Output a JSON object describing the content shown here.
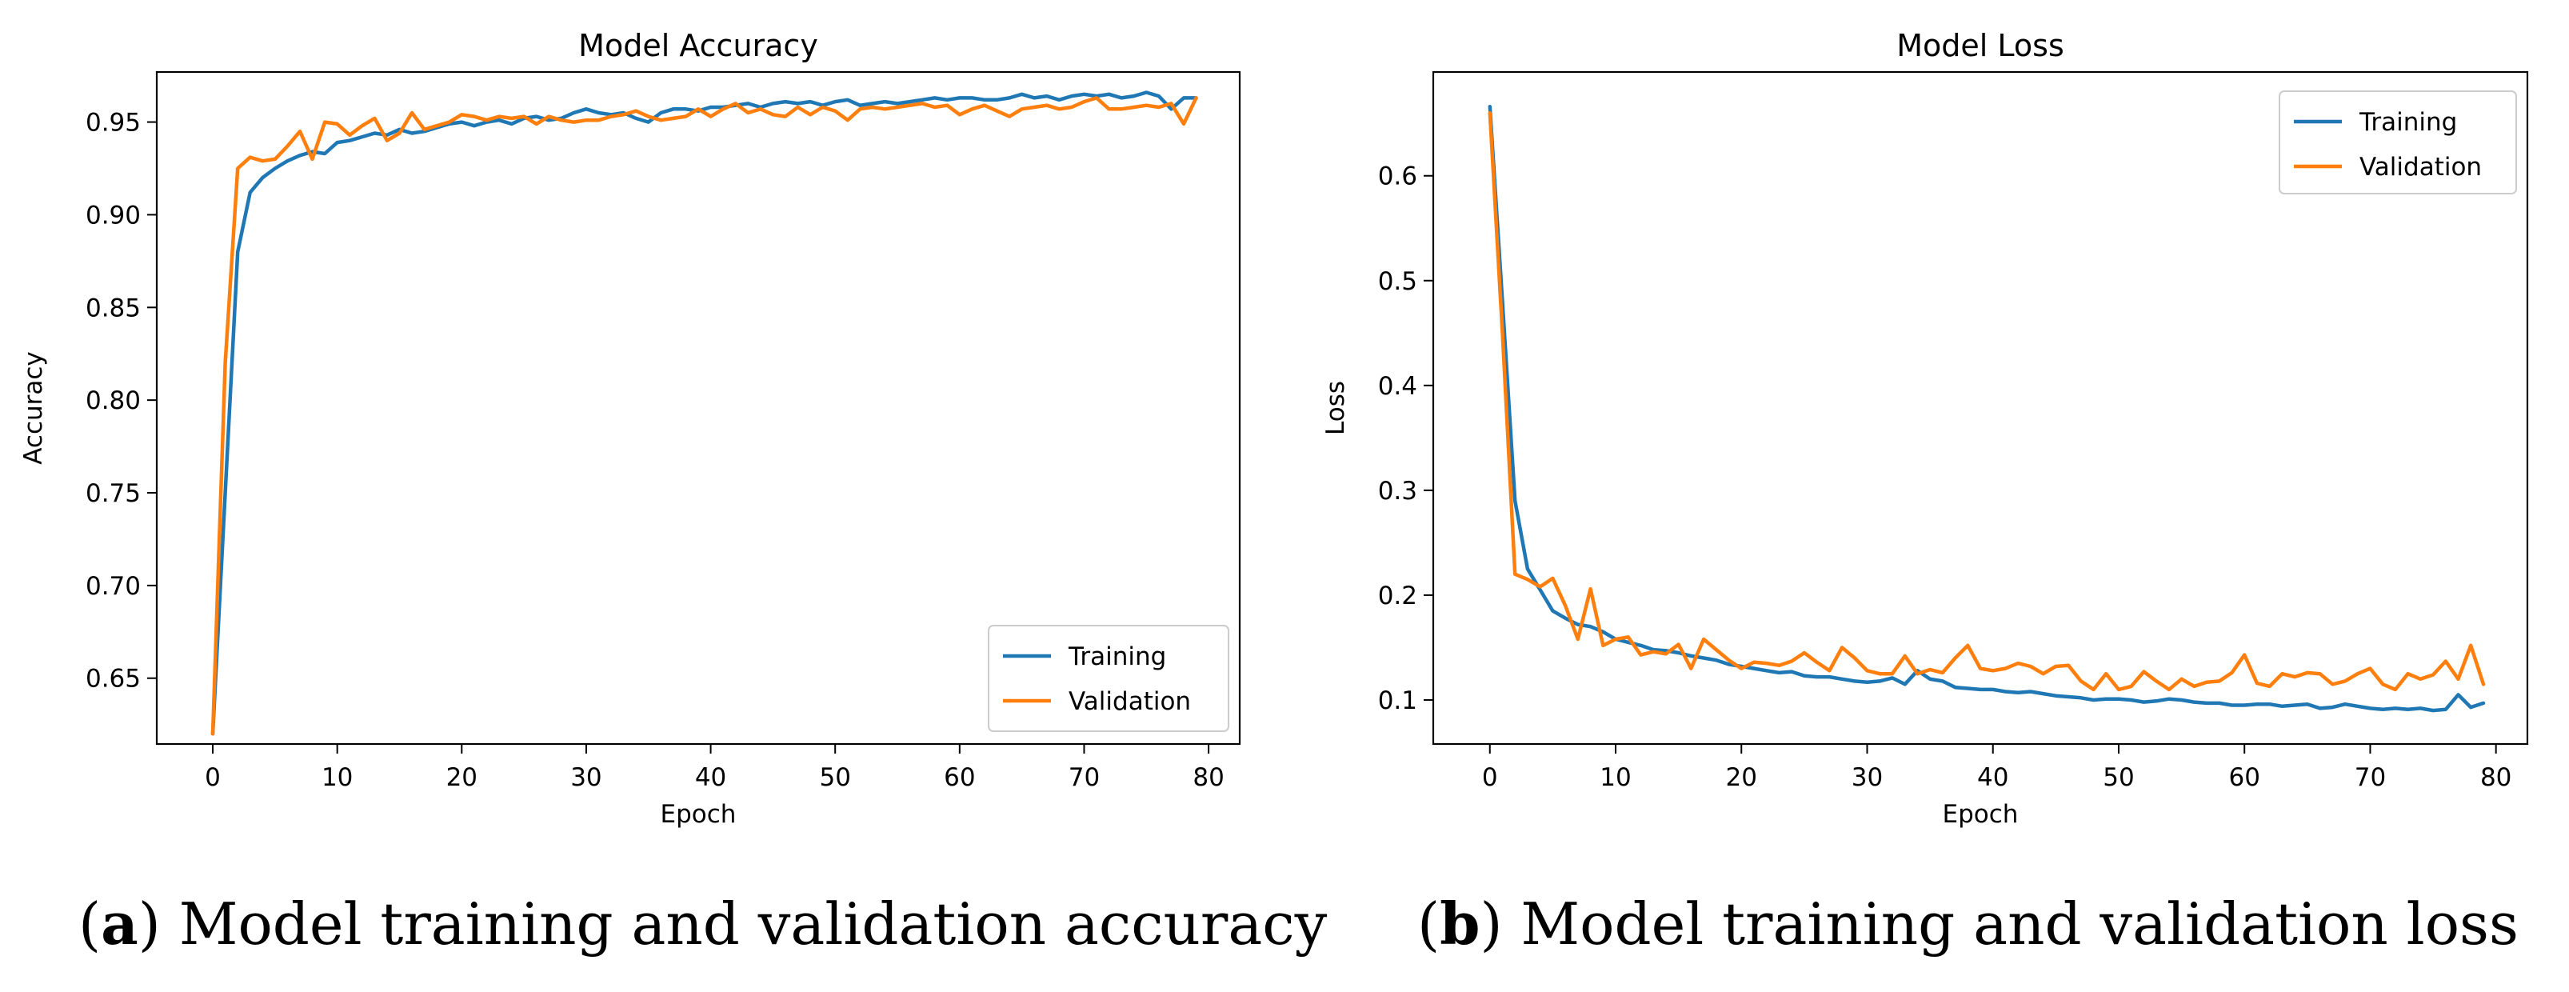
{
  "chart_data": [
    {
      "type": "line",
      "title": "Model Accuracy",
      "xlabel": "Epoch",
      "ylabel": "Accuracy",
      "xlim": [
        -4.5,
        82.5
      ],
      "ylim": [
        0.6145,
        0.977
      ],
      "xticks": [
        0,
        10,
        20,
        30,
        40,
        50,
        60,
        70,
        80
      ],
      "yticks": [
        0.65,
        0.7,
        0.75,
        0.8,
        0.85,
        0.9,
        0.95
      ],
      "ytick_labels": [
        "0.65",
        "0.70",
        "0.75",
        "0.80",
        "0.85",
        "0.90",
        "0.95"
      ],
      "legend_position": "lower-right",
      "series": [
        {
          "name": "Training",
          "color": "#1f77b4",
          "values": [
            0.62,
            0.75,
            0.88,
            0.912,
            0.92,
            0.925,
            0.929,
            0.932,
            0.934,
            0.933,
            0.939,
            0.94,
            0.942,
            0.944,
            0.943,
            0.946,
            0.944,
            0.945,
            0.947,
            0.949,
            0.95,
            0.948,
            0.95,
            0.951,
            0.949,
            0.952,
            0.953,
            0.951,
            0.952,
            0.955,
            0.957,
            0.955,
            0.954,
            0.955,
            0.952,
            0.95,
            0.955,
            0.957,
            0.957,
            0.956,
            0.958,
            0.958,
            0.959,
            0.96,
            0.958,
            0.96,
            0.961,
            0.96,
            0.961,
            0.959,
            0.961,
            0.962,
            0.959,
            0.96,
            0.961,
            0.96,
            0.961,
            0.962,
            0.963,
            0.962,
            0.963,
            0.963,
            0.962,
            0.962,
            0.963,
            0.965,
            0.963,
            0.964,
            0.962,
            0.964,
            0.965,
            0.964,
            0.965,
            0.963,
            0.964,
            0.966,
            0.964,
            0.957,
            0.963,
            0.963
          ]
        },
        {
          "name": "Validation",
          "color": "#ff7f0e",
          "values": [
            0.62,
            0.82,
            0.925,
            0.931,
            0.929,
            0.93,
            0.937,
            0.945,
            0.93,
            0.95,
            0.949,
            0.943,
            0.948,
            0.952,
            0.94,
            0.944,
            0.955,
            0.946,
            0.948,
            0.95,
            0.954,
            0.953,
            0.951,
            0.953,
            0.952,
            0.953,
            0.949,
            0.953,
            0.951,
            0.95,
            0.951,
            0.951,
            0.953,
            0.954,
            0.956,
            0.953,
            0.951,
            0.952,
            0.953,
            0.957,
            0.953,
            0.957,
            0.96,
            0.955,
            0.957,
            0.954,
            0.953,
            0.958,
            0.954,
            0.958,
            0.956,
            0.951,
            0.957,
            0.958,
            0.957,
            0.958,
            0.959,
            0.96,
            0.958,
            0.959,
            0.954,
            0.957,
            0.959,
            0.956,
            0.953,
            0.957,
            0.958,
            0.959,
            0.957,
            0.958,
            0.961,
            0.963,
            0.957,
            0.957,
            0.958,
            0.959,
            0.958,
            0.96,
            0.949,
            0.963
          ]
        }
      ]
    },
    {
      "type": "line",
      "title": "Model Loss",
      "xlabel": "Epoch",
      "ylabel": "Loss",
      "xlim": [
        -4.5,
        82.5
      ],
      "ylim": [
        0.058,
        0.699
      ],
      "xticks": [
        0,
        10,
        20,
        30,
        40,
        50,
        60,
        70,
        80
      ],
      "yticks": [
        0.1,
        0.2,
        0.3,
        0.4,
        0.5,
        0.6
      ],
      "ytick_labels": [
        "0.1",
        "0.2",
        "0.3",
        "0.4",
        "0.5",
        "0.6"
      ],
      "legend_position": "upper-right",
      "series": [
        {
          "name": "Training",
          "color": "#1f77b4",
          "values": [
            0.666,
            0.48,
            0.29,
            0.225,
            0.205,
            0.185,
            0.178,
            0.172,
            0.17,
            0.165,
            0.158,
            0.155,
            0.152,
            0.148,
            0.147,
            0.145,
            0.142,
            0.14,
            0.138,
            0.134,
            0.132,
            0.13,
            0.128,
            0.126,
            0.127,
            0.123,
            0.122,
            0.122,
            0.12,
            0.118,
            0.117,
            0.118,
            0.121,
            0.115,
            0.128,
            0.12,
            0.118,
            0.112,
            0.111,
            0.11,
            0.11,
            0.108,
            0.107,
            0.108,
            0.106,
            0.104,
            0.103,
            0.102,
            0.1,
            0.101,
            0.101,
            0.1,
            0.098,
            0.099,
            0.101,
            0.1,
            0.098,
            0.097,
            0.097,
            0.095,
            0.095,
            0.096,
            0.096,
            0.094,
            0.095,
            0.096,
            0.092,
            0.093,
            0.096,
            0.094,
            0.092,
            0.091,
            0.092,
            0.091,
            0.092,
            0.09,
            0.091,
            0.105,
            0.093,
            0.097
          ]
        },
        {
          "name": "Validation",
          "color": "#ff7f0e",
          "values": [
            0.66,
            0.45,
            0.22,
            0.215,
            0.208,
            0.216,
            0.19,
            0.158,
            0.206,
            0.152,
            0.158,
            0.16,
            0.143,
            0.146,
            0.144,
            0.153,
            0.13,
            0.158,
            0.148,
            0.138,
            0.13,
            0.136,
            0.135,
            0.133,
            0.137,
            0.145,
            0.136,
            0.128,
            0.15,
            0.14,
            0.128,
            0.125,
            0.125,
            0.142,
            0.125,
            0.129,
            0.126,
            0.14,
            0.152,
            0.13,
            0.128,
            0.13,
            0.135,
            0.132,
            0.125,
            0.132,
            0.133,
            0.118,
            0.11,
            0.125,
            0.11,
            0.113,
            0.127,
            0.118,
            0.11,
            0.12,
            0.113,
            0.117,
            0.118,
            0.126,
            0.143,
            0.116,
            0.113,
            0.125,
            0.122,
            0.126,
            0.125,
            0.115,
            0.118,
            0.125,
            0.13,
            0.115,
            0.11,
            0.125,
            0.12,
            0.124,
            0.137,
            0.12,
            0.152,
            0.115
          ]
        }
      ]
    }
  ],
  "captions": {
    "a": {
      "letter": "a",
      "text": " Model training and validation accuracy"
    },
    "b": {
      "letter": "b",
      "text": " Model training and validation loss"
    }
  }
}
